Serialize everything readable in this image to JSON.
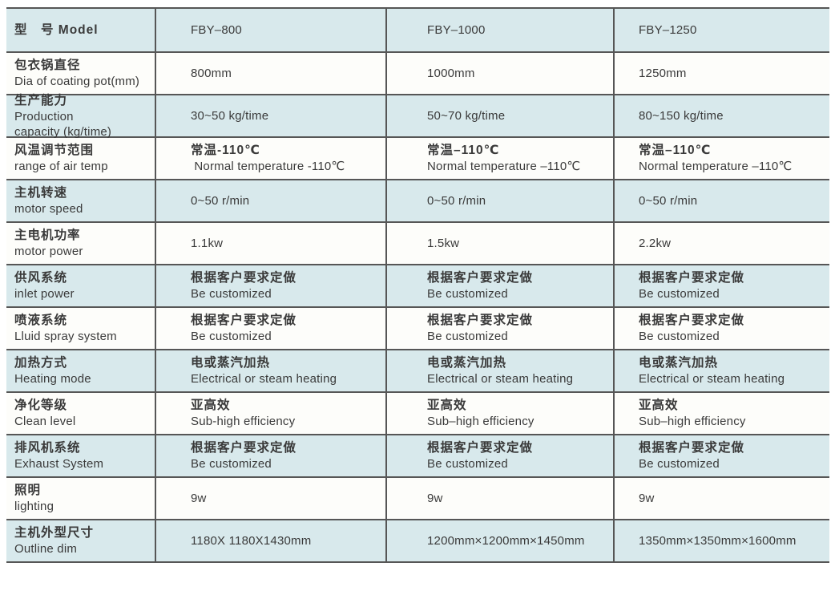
{
  "colors": {
    "row_alt": "#d8e9ec",
    "row_base": "#fdfdfa",
    "line": "#565656",
    "text": "#3a3a3a",
    "page_bg": "#ffffff"
  },
  "table": {
    "rows": [
      {
        "label_zh": "型　号 Model",
        "label_en": "",
        "fby800": [
          "FBY–800",
          ""
        ],
        "fby1000": [
          "FBY–1000",
          ""
        ],
        "fby1250": [
          "FBY–1250",
          ""
        ]
      },
      {
        "label_zh": "包衣锅直径",
        "label_en": "Dia of coating pot(mm)",
        "fby800": [
          "800mm",
          ""
        ],
        "fby1000": [
          "1000mm",
          ""
        ],
        "fby1250": [
          "1250mm",
          ""
        ]
      },
      {
        "label_zh": "生产能力",
        "label_en": "Production\ncapacity (kg/time)",
        "fby800": [
          "30~50 kg/time",
          ""
        ],
        "fby1000": [
          "50~70 kg/time",
          ""
        ],
        "fby1250": [
          "80~150 kg/time",
          ""
        ]
      },
      {
        "label_zh": "风温调节范围",
        "label_en": "range of air temp",
        "fby800": [
          "常温-110℃",
          " Normal temperature -110℃"
        ],
        "fby1000": [
          "常温–110℃",
          "Normal temperature –110℃"
        ],
        "fby1250": [
          "常温–110℃",
          "Normal temperature –110℃"
        ]
      },
      {
        "label_zh": "主机转速",
        "label_en": "motor speed",
        "fby800": [
          "0~50 r/min",
          ""
        ],
        "fby1000": [
          "0~50 r/min",
          ""
        ],
        "fby1250": [
          "0~50 r/min",
          ""
        ]
      },
      {
        "label_zh": "主电机功率",
        "label_en": "motor power",
        "fby800": [
          "1.1kw",
          ""
        ],
        "fby1000": [
          "1.5kw",
          ""
        ],
        "fby1250": [
          "2.2kw",
          ""
        ]
      },
      {
        "label_zh": "供风系统",
        "label_en": "inlet power",
        "fby800": [
          "根据客户要求定做",
          "Be customized"
        ],
        "fby1000": [
          "根据客户要求定做",
          "Be customized"
        ],
        "fby1250": [
          "根据客户要求定做",
          "Be customized"
        ]
      },
      {
        "label_zh": "喷液系统",
        "label_en": "Lluid spray system",
        "fby800": [
          "根据客户要求定做",
          "Be customized"
        ],
        "fby1000": [
          "根据客户要求定做",
          "Be customized"
        ],
        "fby1250": [
          "根据客户要求定做",
          "Be customized"
        ]
      },
      {
        "label_zh": "加热方式",
        "label_en": "Heating mode",
        "fby800": [
          "电或蒸汽加热",
          "Electrical or steam heating"
        ],
        "fby1000": [
          "电或蒸汽加热",
          "Electrical or steam heating"
        ],
        "fby1250": [
          "电或蒸汽加热",
          "Electrical or steam heating"
        ]
      },
      {
        "label_zh": "净化等级",
        "label_en": "Clean level",
        "fby800": [
          "亚高效",
          "Sub-high efficiency"
        ],
        "fby1000": [
          "亚高效",
          "Sub–high efficiency"
        ],
        "fby1250": [
          "亚高效",
          "Sub–high efficiency"
        ]
      },
      {
        "label_zh": "排风机系统",
        "label_en": "Exhaust System",
        "fby800": [
          "根据客户要求定做",
          "Be customized"
        ],
        "fby1000": [
          "根据客户要求定做",
          "Be customized"
        ],
        "fby1250": [
          "根据客户要求定做",
          "Be customized"
        ]
      },
      {
        "label_zh": "照明",
        "label_en": "lighting",
        "fby800": [
          "9w",
          ""
        ],
        "fby1000": [
          "9w",
          ""
        ],
        "fby1250": [
          "9w",
          ""
        ]
      },
      {
        "label_zh": "主机外型尺寸",
        "label_en": "Outline dim",
        "fby800": [
          "1180X 1180X1430mm",
          ""
        ],
        "fby1000": [
          "1200mm×1200mm×1450mm",
          ""
        ],
        "fby1250": [
          "1350mm×1350mm×1600mm",
          ""
        ]
      }
    ]
  }
}
